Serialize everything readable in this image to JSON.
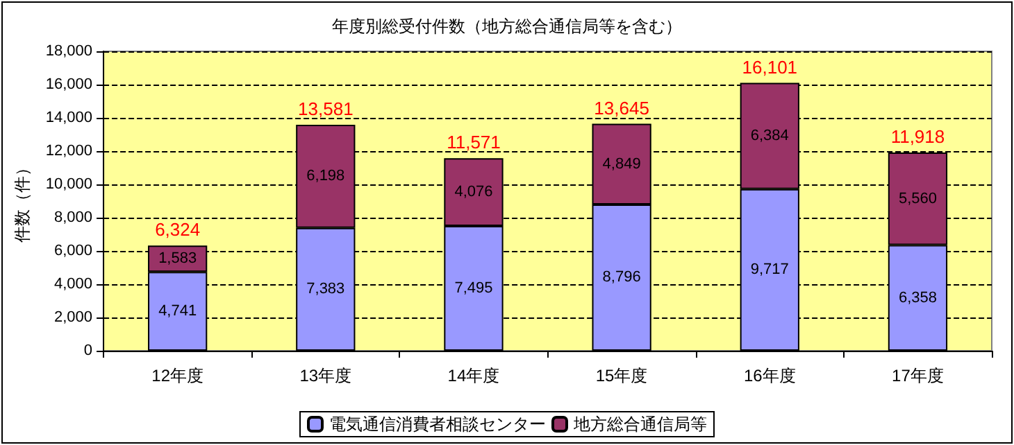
{
  "chart_data": {
    "type": "bar",
    "title": "年度別総受付件数（地方総合通信局等を含む）",
    "ylabel": "件数（件）",
    "categories": [
      "12年度",
      "13年度",
      "14年度",
      "15年度",
      "16年度",
      "17年度"
    ],
    "stacked": true,
    "series": [
      {
        "name": "電気通信消費者相談センター",
        "color": "#9999ff",
        "values": [
          4741,
          7383,
          7495,
          8796,
          9717,
          6358
        ],
        "value_labels": [
          "4,741",
          "7,383",
          "7,495",
          "8,796",
          "9,717",
          "6,358"
        ]
      },
      {
        "name": "地方総合通信局等",
        "color": "#993366",
        "values": [
          1583,
          6198,
          4076,
          4849,
          6384,
          5560
        ],
        "value_labels": [
          "1,583",
          "6,198",
          "4,076",
          "4,849",
          "6,384",
          "5,560"
        ]
      }
    ],
    "totals": [
      "6,324",
      "13,581",
      "11,571",
      "13,645",
      "16,101",
      "11,918"
    ],
    "ylim": [
      0,
      18000
    ],
    "yticks": [
      0,
      {
        "value": 2000,
        "label": "2,000"
      },
      {
        "value": 4000,
        "label": "4,000"
      },
      {
        "value": 6000,
        "label": "6,000"
      },
      {
        "value": 8000,
        "label": "8,000"
      },
      {
        "value": 10000,
        "label": "10,000"
      },
      {
        "value": 12000,
        "label": "12,000"
      },
      {
        "value": 14000,
        "label": "14,000"
      },
      {
        "value": 16000,
        "label": "16,000"
      },
      {
        "value": 18000,
        "label": "18,000"
      }
    ],
    "grid": "y",
    "legend": "bottom"
  }
}
